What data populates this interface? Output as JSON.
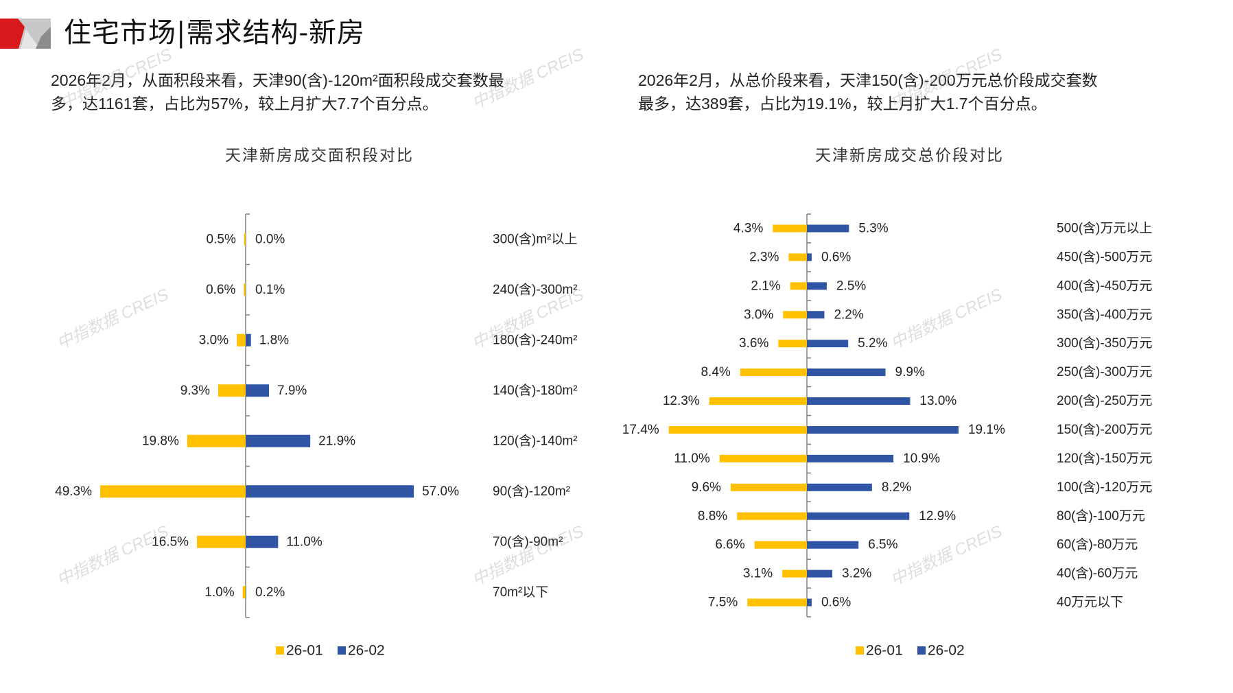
{
  "header": {
    "title": "住宅市场|需求结构-新房",
    "logo_colors": [
      "#D7191C",
      "#C8C8C8",
      "#8C8C8C"
    ]
  },
  "paragraphs": {
    "left": {
      "line1": "2026年2月，从面积段来看，天津90(含)-120m²面积段成交套数最",
      "line2": "多，达1161套，占比为57%，较上月扩大7.7个百分点。"
    },
    "right": {
      "line1": "2026年2月，从总价段来看，天津150(含)-200万元总价段成交套数",
      "line2": "最多，达389套，占比为19.1%，较上月扩大1.7个百分点。"
    }
  },
  "watermark_text": "中指数据 CREIS",
  "colors": {
    "series_a": "#FFC000",
    "series_b": "#2F55A4",
    "axis": "#808080"
  },
  "chart_data": [
    {
      "type": "bar",
      "orientation": "horizontal-butterfly",
      "title": "天津新房成交面积段对比",
      "categories": [
        "300(含)m²以上",
        "240(含)-300m²",
        "180(含)-240m²",
        "140(含)-180m²",
        "120(含)-140m²",
        "90(含)-120m²",
        "70(含)-90m²",
        "70m²以下"
      ],
      "series": [
        {
          "name": "26-01",
          "side": "left",
          "values": [
            0.5,
            0.6,
            3.0,
            9.3,
            19.8,
            49.3,
            16.5,
            1.0
          ],
          "labels": [
            "0.5%",
            "0.6%",
            "3.0%",
            "9.3%",
            "19.8%",
            "49.3%",
            "16.5%",
            "1.0%"
          ]
        },
        {
          "name": "26-02",
          "side": "right",
          "values": [
            0.0,
            0.1,
            1.8,
            7.9,
            21.9,
            57.0,
            11.0,
            0.2
          ],
          "labels": [
            "0.0%",
            "0.1%",
            "1.8%",
            "7.9%",
            "21.9%",
            "57.0%",
            "11.0%",
            "0.2%"
          ]
        }
      ],
      "unit": "%",
      "legend": "bottom"
    },
    {
      "type": "bar",
      "orientation": "horizontal-butterfly",
      "title": "天津新房成交总价段对比",
      "categories": [
        "500(含)万元以上",
        "450(含)-500万元",
        "400(含)-450万元",
        "350(含)-400万元",
        "300(含)-350万元",
        "250(含)-300万元",
        "200(含)-250万元",
        "150(含)-200万元",
        "120(含)-150万元",
        "100(含)-120万元",
        "80(含)-100万元",
        "60(含)-80万元",
        "40(含)-60万元",
        "40万元以下"
      ],
      "series": [
        {
          "name": "26-01",
          "side": "left",
          "values": [
            4.3,
            2.3,
            2.1,
            3.0,
            3.6,
            8.4,
            12.3,
            17.4,
            11.0,
            9.6,
            8.8,
            6.6,
            3.1,
            7.5
          ],
          "labels": [
            "4.3%",
            "2.3%",
            "2.1%",
            "3.0%",
            "3.6%",
            "8.4%",
            "12.3%",
            "17.4%",
            "11.0%",
            "9.6%",
            "8.8%",
            "6.6%",
            "3.1%",
            "7.5%"
          ]
        },
        {
          "name": "26-02",
          "side": "right",
          "values": [
            5.3,
            0.6,
            2.5,
            2.2,
            5.2,
            9.9,
            13.0,
            19.1,
            10.9,
            8.2,
            12.9,
            6.5,
            3.2,
            0.6
          ],
          "labels": [
            "5.3%",
            "0.6%",
            "2.5%",
            "2.2%",
            "5.2%",
            "9.9%",
            "13.0%",
            "19.1%",
            "10.9%",
            "8.2%",
            "12.9%",
            "6.5%",
            "3.2%",
            "0.6%"
          ]
        }
      ],
      "unit": "%",
      "legend": "bottom"
    }
  ]
}
